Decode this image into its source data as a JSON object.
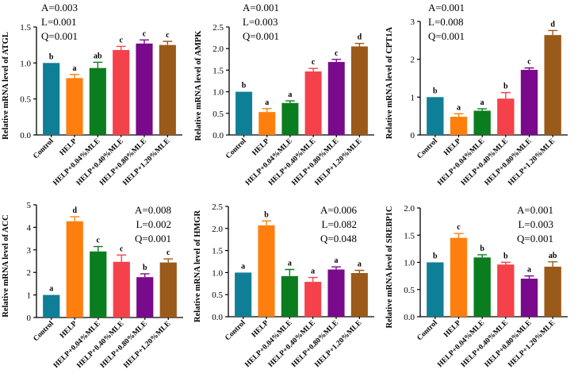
{
  "colors": {
    "Control": "#0f7f97",
    "HELP": "#ff7f0e",
    "HELP+0.04%MLE": "#0a7d1f",
    "HELP+0.40%MLE": "#f5424a",
    "HELP+0.80%MLE": "#7a0a8c",
    "HELP+1.20%MLE": "#9a5a1a"
  },
  "chart_data": [
    {
      "type": "bar",
      "ylabel": "Relative mRNA level of ATGL",
      "categories": [
        "Control",
        "HELP",
        "HELP+0.04%MLE",
        "HELP+0.40%MLE",
        "HELP+0.80%MLE",
        "HELP+1.20%MLE"
      ],
      "values": [
        1.0,
        0.79,
        0.93,
        1.18,
        1.27,
        1.25
      ],
      "errors": [
        0.0,
        0.05,
        0.08,
        0.05,
        0.05,
        0.05
      ],
      "letters": [
        "b",
        "a",
        "ab",
        "c",
        "c",
        "c"
      ],
      "ylim": [
        0,
        1.5
      ],
      "yticks": [
        "0.0",
        "0.5",
        "1.0",
        "1.5"
      ],
      "stats": [
        "A=0.003",
        "L=0.001",
        "Q=0.001"
      ]
    },
    {
      "type": "bar",
      "ylabel": "Relative mRNA level of AMPK",
      "categories": [
        "Control",
        "HELP",
        "HELP+0.04%MLE",
        "HELP+0.40%MLE",
        "HELP+0.80%MLE",
        "HELP+1.20%MLE"
      ],
      "values": [
        1.0,
        0.53,
        0.74,
        1.47,
        1.69,
        2.05
      ],
      "errors": [
        0.0,
        0.08,
        0.05,
        0.07,
        0.06,
        0.07
      ],
      "letters": [
        "b",
        "a",
        "a",
        "c",
        "c",
        "d"
      ],
      "ylim": [
        0,
        2.5
      ],
      "yticks": [
        "0.0",
        "0.5",
        "1.0",
        "1.5",
        "2.0",
        "2.5"
      ],
      "stats": [
        "A=0.001",
        "L=0.003",
        "Q=0.001"
      ]
    },
    {
      "type": "bar",
      "ylabel": "Relative mRNA level of CPT1A",
      "categories": [
        "Control",
        "HELP",
        "HELP+0.04%MLE",
        "HELP+0.40%MLE",
        "HELP+0.80%MLE",
        "HELP+1.20%MLE"
      ],
      "values": [
        1.0,
        0.48,
        0.64,
        0.96,
        1.72,
        2.64
      ],
      "errors": [
        0.0,
        0.08,
        0.05,
        0.16,
        0.05,
        0.12
      ],
      "letters": [
        "b",
        "a",
        "a",
        "b",
        "c",
        "d"
      ],
      "ylim": [
        0,
        3
      ],
      "yticks": [
        "0",
        "1",
        "2",
        "3"
      ],
      "stats": [
        "A=0.001",
        "L=0.008",
        "Q=0.001"
      ]
    },
    {
      "type": "bar",
      "ylabel": "Relative mRNA level of ACC",
      "categories": [
        "Control",
        "HELP",
        "HELP+0.04%MLE",
        "HELP+0.40%MLE",
        "HELP+0.80%MLE",
        "HELP+1.20%MLE"
      ],
      "values": [
        1.0,
        4.27,
        2.93,
        2.47,
        1.79,
        2.44
      ],
      "errors": [
        0.0,
        0.2,
        0.22,
        0.3,
        0.15,
        0.16
      ],
      "letters": [
        "a",
        "d",
        "c",
        "c",
        "b",
        "c"
      ],
      "ylim": [
        0,
        5
      ],
      "yticks": [
        "0",
        "1",
        "2",
        "3",
        "4",
        "5"
      ],
      "stats": [
        "A=0.008",
        "L=0.002",
        "Q=0.001"
      ]
    },
    {
      "type": "bar",
      "ylabel": "Relative mRNA level of HMGR",
      "categories": [
        "Control",
        "HELP",
        "HELP+0.04%MLE",
        "HELP+0.40%MLE",
        "HELP+0.80%MLE",
        "HELP+1.20%MLE"
      ],
      "values": [
        1.0,
        2.07,
        0.92,
        0.79,
        1.07,
        0.99
      ],
      "errors": [
        0.0,
        0.1,
        0.15,
        0.1,
        0.06,
        0.06
      ],
      "letters": [
        "a",
        "b",
        "a",
        "a",
        "a",
        "a"
      ],
      "ylim": [
        0,
        2.5
      ],
      "yticks": [
        "0.0",
        "0.5",
        "1.0",
        "1.5",
        "2.0",
        "2.5"
      ],
      "stats": [
        "A=0.006",
        "L=0.082",
        "Q=0.048"
      ]
    },
    {
      "type": "bar",
      "ylabel": "Relative mRNA level of SREBP1C",
      "categories": [
        "Control",
        "HELP",
        "HELP+0.04%MLE",
        "HELP+0.40%MLE",
        "HELP+0.80%MLE",
        "HELP+1.20%MLE"
      ],
      "values": [
        1.0,
        1.45,
        1.09,
        0.96,
        0.7,
        0.92
      ],
      "errors": [
        0.0,
        0.08,
        0.05,
        0.04,
        0.05,
        0.09
      ],
      "letters": [
        "b",
        "c",
        "b",
        "b",
        "a",
        "ab"
      ],
      "ylim": [
        0,
        2
      ],
      "yticks": [
        "0.0",
        "0.5",
        "1.0",
        "1.5",
        "2.0"
      ],
      "stats": [
        "A=0.001",
        "L=0.003",
        "Q=0.001"
      ]
    }
  ]
}
